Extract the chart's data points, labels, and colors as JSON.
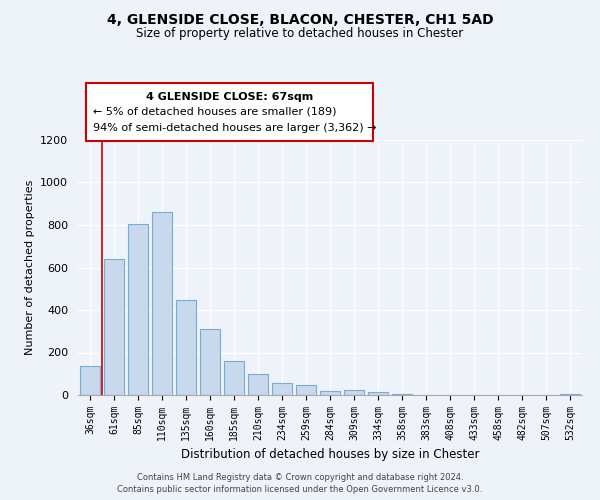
{
  "title": "4, GLENSIDE CLOSE, BLACON, CHESTER, CH1 5AD",
  "subtitle": "Size of property relative to detached houses in Chester",
  "xlabel": "Distribution of detached houses by size in Chester",
  "ylabel": "Number of detached properties",
  "bar_labels": [
    "36sqm",
    "61sqm",
    "85sqm",
    "110sqm",
    "135sqm",
    "160sqm",
    "185sqm",
    "210sqm",
    "234sqm",
    "259sqm",
    "284sqm",
    "309sqm",
    "334sqm",
    "358sqm",
    "383sqm",
    "408sqm",
    "433sqm",
    "458sqm",
    "482sqm",
    "507sqm",
    "532sqm"
  ],
  "bar_values": [
    135,
    640,
    805,
    860,
    445,
    310,
    160,
    97,
    55,
    45,
    18,
    22,
    12,
    5,
    2,
    1,
    1,
    0,
    1,
    0,
    5
  ],
  "bar_color": "#c8d8ed",
  "bar_edge_color": "#7aadd4",
  "ylim": [
    0,
    1200
  ],
  "yticks": [
    0,
    200,
    400,
    600,
    800,
    1000,
    1200
  ],
  "vline_x": 1.5,
  "vline_color": "#cc0000",
  "annotation_title": "4 GLENSIDE CLOSE: 67sqm",
  "annotation_line1": "← 5% of detached houses are smaller (189)",
  "annotation_line2": "94% of semi-detached houses are larger (3,362) →",
  "annotation_box_color": "#ffffff",
  "annotation_box_edge": "#cc0000",
  "footer_line1": "Contains HM Land Registry data © Crown copyright and database right 2024.",
  "footer_line2": "Contains public sector information licensed under the Open Government Licence v3.0.",
  "background_color": "#eef2f9"
}
